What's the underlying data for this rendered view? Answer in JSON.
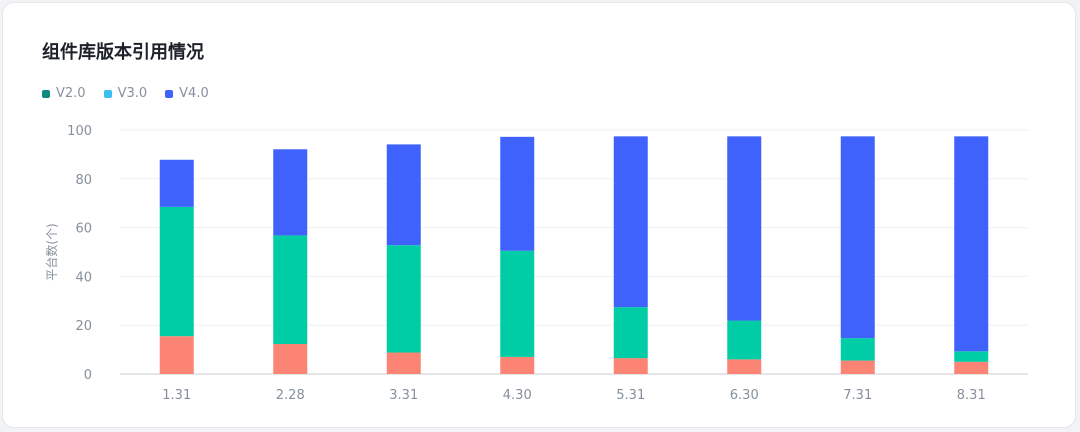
{
  "chart_data": {
    "type": "bar",
    "stacked": true,
    "title": "组件库版本引用情况",
    "ylabel": "平台数(个)",
    "xlabel": "",
    "ylim": [
      0,
      100
    ],
    "yticks": [
      0,
      20,
      40,
      60,
      80,
      100
    ],
    "grid": true,
    "legend_position": "top-left",
    "categories": [
      "1.31",
      "2.28",
      "3.31",
      "4.30",
      "5.31",
      "6.30",
      "7.31",
      "8.31"
    ],
    "legend": [
      {
        "name": "V2.0",
        "color": "#0e8a7e"
      },
      {
        "name": "V3.0",
        "color": "#3dbef0"
      },
      {
        "name": "V4.0",
        "color": "#3f62fd"
      }
    ],
    "series": [
      {
        "color": "#fb8474",
        "values": [
          15.5,
          12.3,
          8.8,
          7.0,
          6.5,
          6.0,
          5.5,
          5.0
        ]
      },
      {
        "color": "#00cda6",
        "values": [
          53.0,
          44.5,
          44.0,
          43.5,
          20.9,
          15.9,
          9.2,
          4.3
        ]
      },
      {
        "color": "#3f62fd",
        "values": [
          19.3,
          35.3,
          41.3,
          46.7,
          70.0,
          75.5,
          82.7,
          88.1
        ]
      }
    ]
  }
}
